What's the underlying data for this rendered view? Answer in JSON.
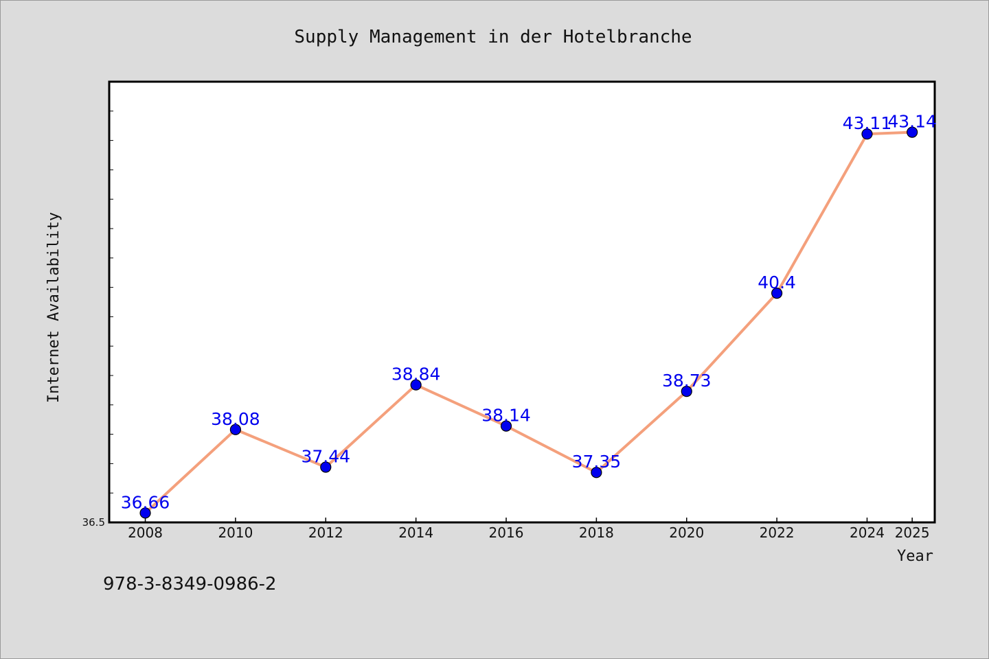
{
  "chart_data": {
    "type": "line",
    "title": "Supply Management in der Hotelbranche",
    "xlabel": "Year",
    "ylabel": "Internet Availability",
    "x": [
      "2008",
      "2010",
      "2012",
      "2014",
      "2016",
      "2018",
      "2020",
      "2022",
      "2024",
      "2025"
    ],
    "series": [
      {
        "values": [
          36.66,
          38.08,
          37.44,
          38.84,
          38.14,
          37.35,
          38.73,
          40.4,
          43.11,
          43.14
        ]
      }
    ],
    "data_labels": [
      "36.66",
      "38.08",
      "37.44",
      "38.84",
      "38.14",
      "37.35",
      "38.73",
      "40.4",
      "43.11",
      "43.14"
    ],
    "ylim": [
      36.5,
      44.0
    ],
    "ytick_labels": [
      "36.5"
    ],
    "grid": false,
    "legend": "none",
    "colors": {
      "line": "#f4a07c",
      "marker": "#0000ee",
      "label": "#0000ee",
      "background": "#dcdcdc",
      "plot_bg": "#ffffff"
    }
  },
  "footer": {
    "isbn": "978-3-8349-0986-2"
  }
}
